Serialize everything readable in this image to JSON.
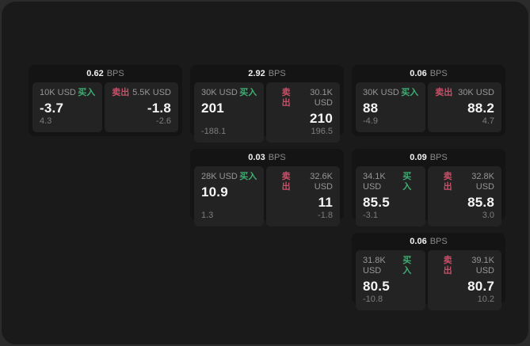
{
  "labels": {
    "bps": "BPS",
    "buy": "买入",
    "sell": "卖出"
  },
  "colors": {
    "outer_bg": "#2b2b2b",
    "panel_bg": "#1a1a1a",
    "card_bg": "#141414",
    "cell_bg": "#232323",
    "label": "#969696",
    "value": "#f5f5f5",
    "buy": "#3fae74",
    "sell": "#c94f68"
  },
  "cards": [
    {
      "col": 1,
      "row": 1,
      "bps": "0.62",
      "buy": {
        "amount": "10K USD",
        "value": "-3.7",
        "sub": "4.3"
      },
      "sell": {
        "amount": "5.5K USD",
        "value": "-1.8",
        "sub": "-2.6"
      }
    },
    {
      "col": 2,
      "row": 1,
      "bps": "2.92",
      "buy": {
        "amount": "30K USD",
        "value": "201",
        "sub": "-188.1"
      },
      "sell": {
        "amount": "30.1K USD",
        "value": "210",
        "sub": "196.5"
      }
    },
    {
      "col": 3,
      "row": 1,
      "bps": "0.06",
      "buy": {
        "amount": "30K USD",
        "value": "88",
        "sub": "-4.9"
      },
      "sell": {
        "amount": "30K USD",
        "value": "88.2",
        "sub": "4.7"
      }
    },
    {
      "col": 2,
      "row": 2,
      "bps": "0.03",
      "buy": {
        "amount": "28K USD",
        "value": "10.9",
        "sub": "1.3"
      },
      "sell": {
        "amount": "32.6K USD",
        "value": "11",
        "sub": "-1.8"
      }
    },
    {
      "col": 3,
      "row": 2,
      "bps": "0.09",
      "buy": {
        "amount": "34.1K USD",
        "value": "85.5",
        "sub": "-3.1"
      },
      "sell": {
        "amount": "32.8K USD",
        "value": "85.8",
        "sub": "3.0"
      }
    },
    {
      "col": 3,
      "row": 3,
      "bps": "0.06",
      "buy": {
        "amount": "31.8K USD",
        "value": "80.5",
        "sub": "-10.8"
      },
      "sell": {
        "amount": "39.1K USD",
        "value": "80.7",
        "sub": "10.2"
      }
    }
  ]
}
